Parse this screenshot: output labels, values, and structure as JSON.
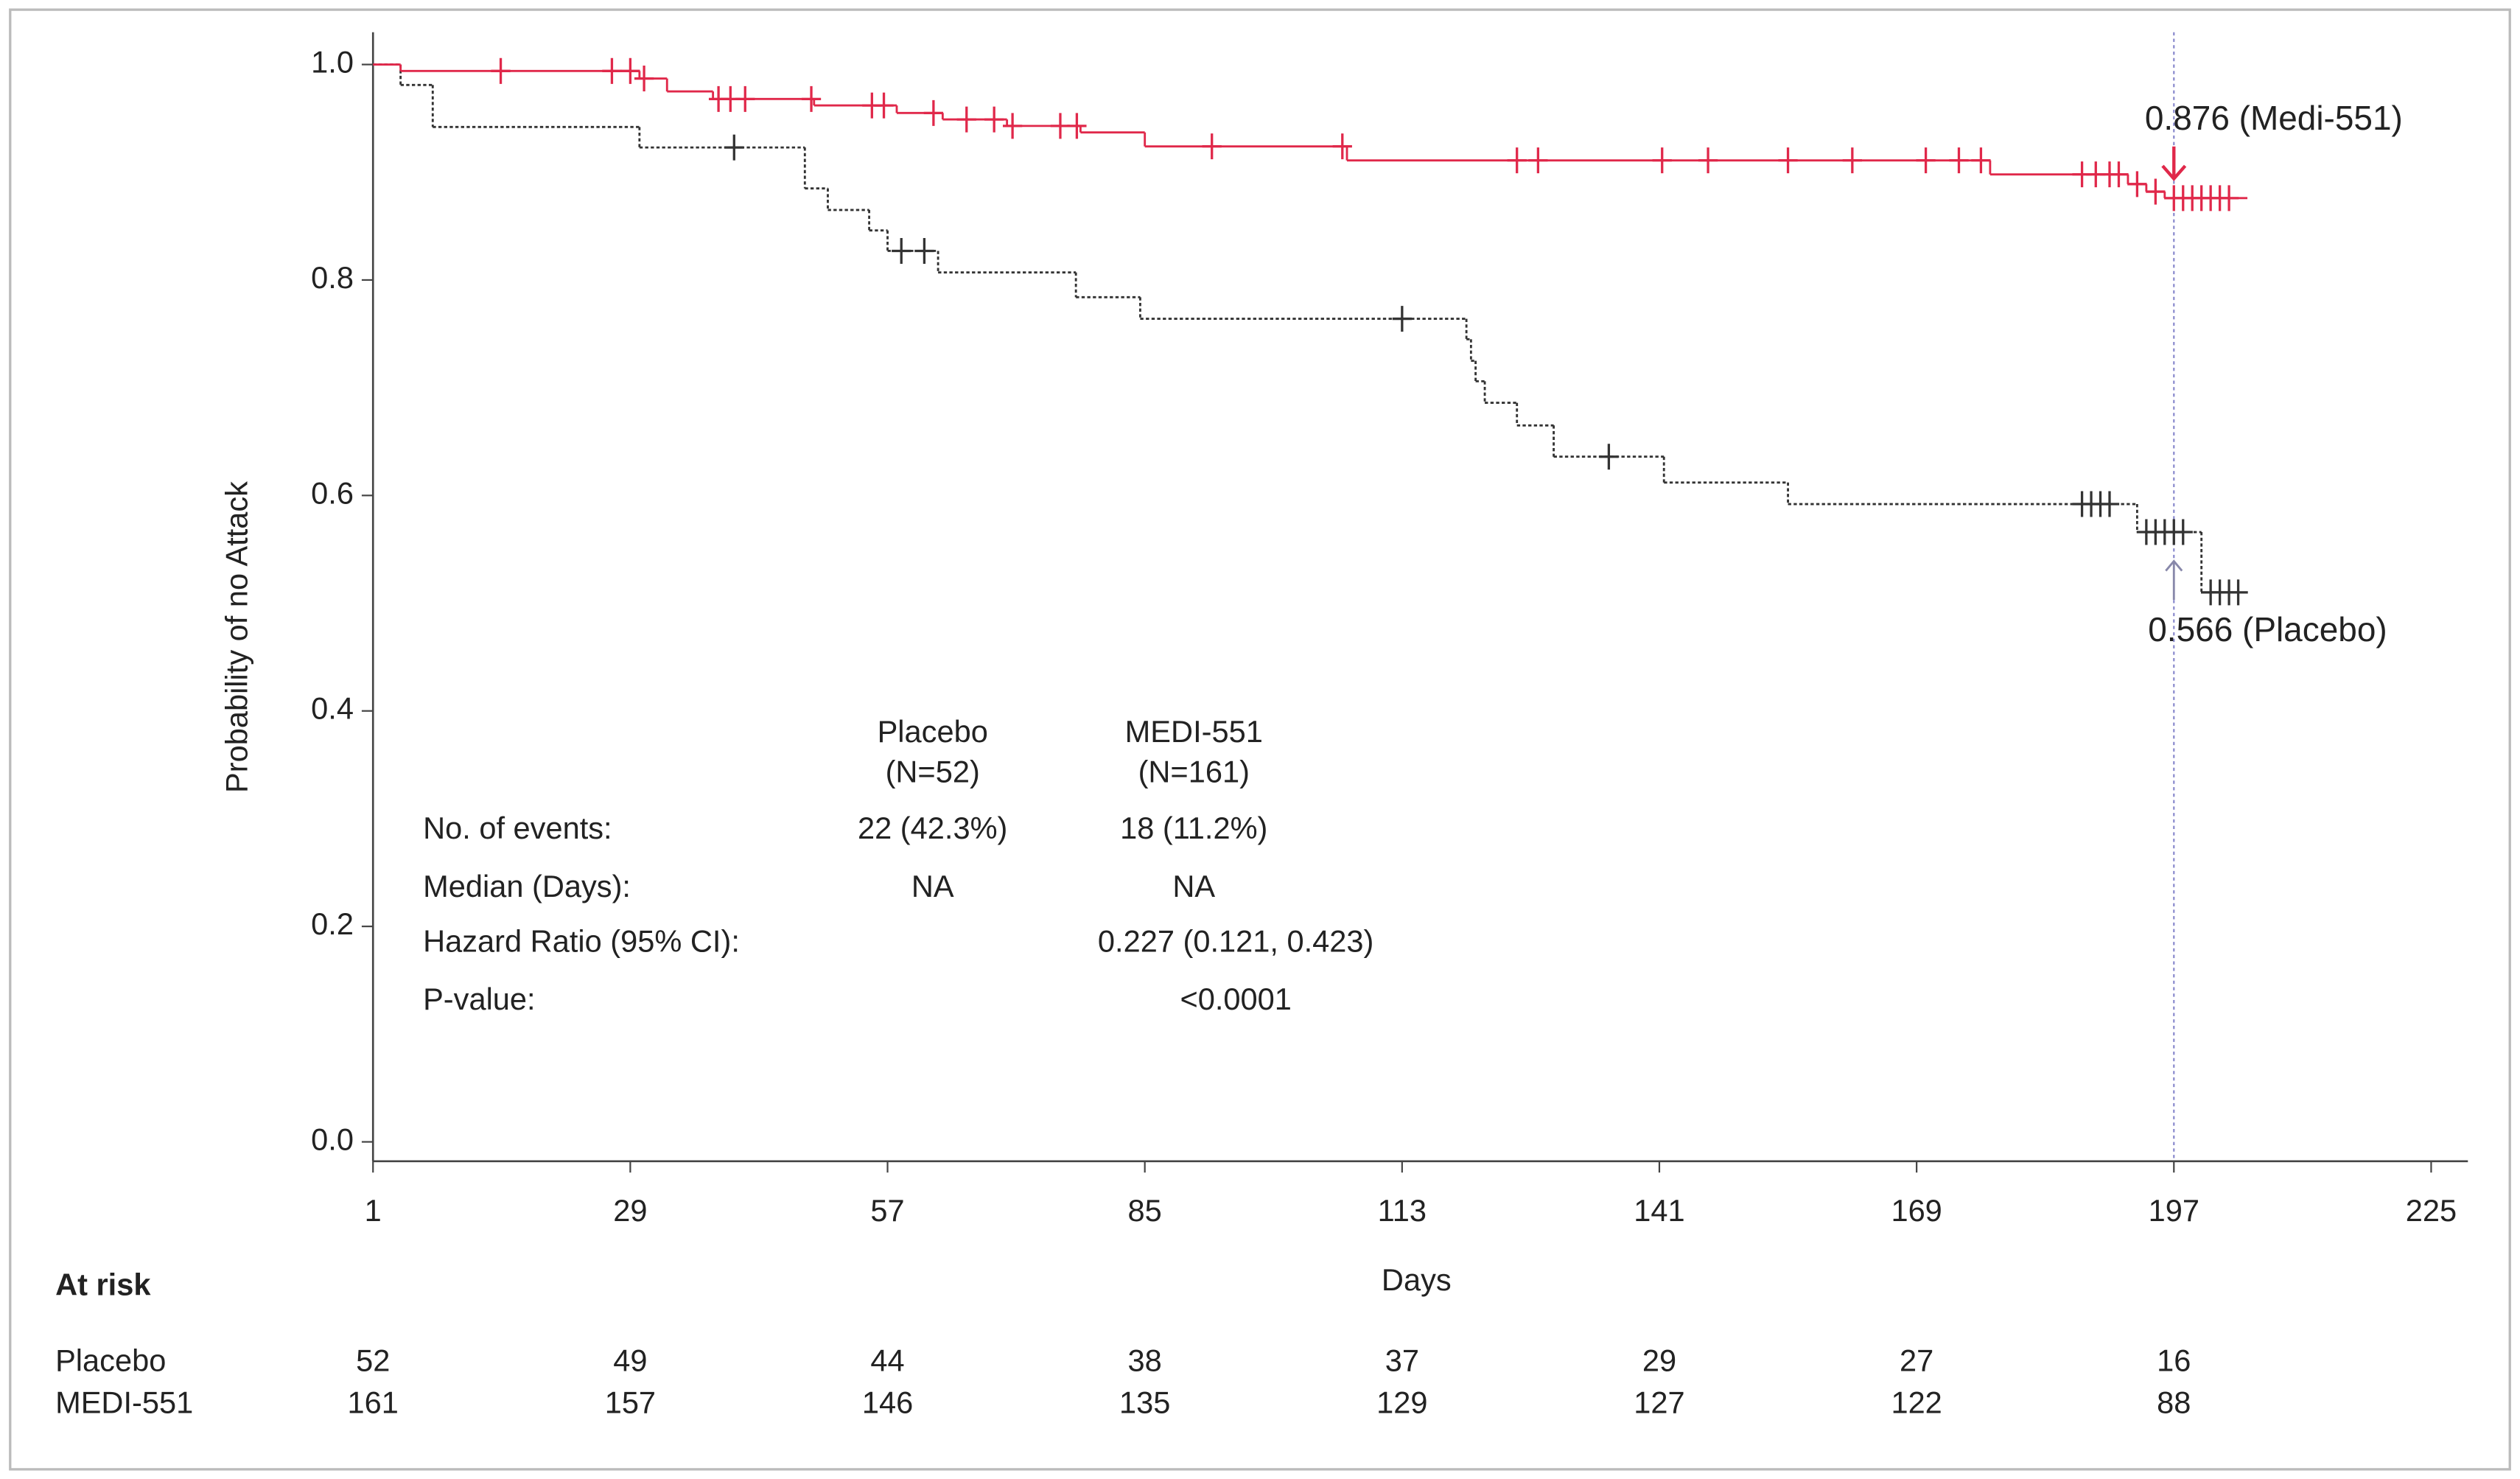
{
  "chart_data": {
    "type": "step",
    "x_label": "Days",
    "y_label": "Probability of no Attack",
    "xlim": [
      1,
      229
    ],
    "ylim": [
      -0.018,
      1.0
    ],
    "xticks": [
      1,
      29,
      57,
      85,
      113,
      141,
      169,
      197,
      225
    ],
    "yticks": [
      {
        "value": 0,
        "label": "0.0"
      },
      0.2,
      0.4,
      0.6,
      0.8,
      {
        "value": 1,
        "label": "1.0"
      }
    ],
    "reference_x": 197,
    "series": [
      {
        "name": "Placebo",
        "color": "#333333",
        "dashed": true,
        "x": [
          1,
          4,
          7.5,
          30,
          48,
          50.5,
          55,
          57,
          62.5,
          77.5,
          84.5,
          120,
          120.5,
          121,
          122,
          125.5,
          129.5,
          141.5,
          155,
          193,
          200,
          204.5
        ],
        "values": [
          1.0,
          0.981,
          0.942,
          0.923,
          0.885,
          0.865,
          0.846,
          0.827,
          0.807,
          0.784,
          0.764,
          0.745,
          0.725,
          0.706,
          0.686,
          0.665,
          0.636,
          0.612,
          0.592,
          0.566,
          0.51,
          0.51
        ],
        "censored": {
          "x": [
            40.3,
            58.5,
            61,
            113,
            135.5,
            187,
            188,
            189,
            190,
            194,
            195,
            196,
            197,
            198,
            201,
            202,
            203,
            204
          ],
          "values": [
            0.923,
            0.827,
            0.827,
            0.764,
            0.636,
            0.592,
            0.592,
            0.592,
            0.592,
            0.566,
            0.566,
            0.566,
            0.566,
            0.566,
            0.51,
            0.51,
            0.51,
            0.51
          ]
        },
        "annotation": "0.566 (Placebo)"
      },
      {
        "name": "MEDI-551",
        "color": "#e0284a",
        "dashed": false,
        "x": [
          1,
          4,
          30,
          33,
          38,
          49,
          58,
          63,
          70,
          78,
          85,
          107,
          177,
          192,
          194,
          196,
          205
        ],
        "values": [
          1.0,
          0.994,
          0.987,
          0.975,
          0.968,
          0.962,
          0.955,
          0.949,
          0.943,
          0.937,
          0.924,
          0.911,
          0.898,
          0.889,
          0.882,
          0.876,
          0.876
        ],
        "censored": {
          "x": [
            14.9,
            27,
            29,
            30.5,
            38.6,
            39.9,
            41.5,
            48.7,
            55.3,
            56.6,
            62,
            65.6,
            68.6,
            70.6,
            75.8,
            77.6,
            92.3,
            106.5,
            125.5,
            127.8,
            141.3,
            146.3,
            155,
            162,
            170,
            173.6,
            176,
            187,
            188.5,
            190,
            191,
            193,
            195,
            197,
            198,
            199,
            200,
            201,
            202,
            203
          ],
          "values": [
            0.994,
            0.994,
            0.994,
            0.987,
            0.968,
            0.968,
            0.968,
            0.968,
            0.962,
            0.962,
            0.955,
            0.949,
            0.949,
            0.943,
            0.943,
            0.943,
            0.924,
            0.924,
            0.911,
            0.911,
            0.911,
            0.911,
            0.911,
            0.911,
            0.911,
            0.911,
            0.911,
            0.898,
            0.898,
            0.898,
            0.898,
            0.889,
            0.882,
            0.876,
            0.876,
            0.876,
            0.876,
            0.876,
            0.876,
            0.876
          ]
        },
        "annotation": "0.876 (Medi-551)"
      }
    ],
    "stats_table": {
      "headers": [
        [
          "Placebo",
          "(N=52)"
        ],
        [
          "MEDI-551",
          "(N=161)"
        ]
      ],
      "rows": [
        {
          "label": "No. of events:",
          "placebo": "22 (42.3%)",
          "medi": "18 (11.2%)"
        },
        {
          "label": "Median (Days):",
          "placebo": "NA",
          "medi": "NA"
        },
        {
          "label": "Hazard Ratio (95% CI):",
          "medi": "0.227 (0.121, 0.423)"
        },
        {
          "label": "P-value:",
          "medi": "<0.0001"
        }
      ]
    },
    "at_risk": {
      "title": "At risk",
      "rows": [
        {
          "name": "Placebo",
          "color": "#222222",
          "counts": [
            52,
            49,
            44,
            38,
            37,
            29,
            27,
            16
          ]
        },
        {
          "name": "MEDI-551",
          "color": "#e0284a",
          "counts": [
            161,
            157,
            146,
            135,
            129,
            127,
            122,
            88
          ]
        }
      ]
    }
  }
}
